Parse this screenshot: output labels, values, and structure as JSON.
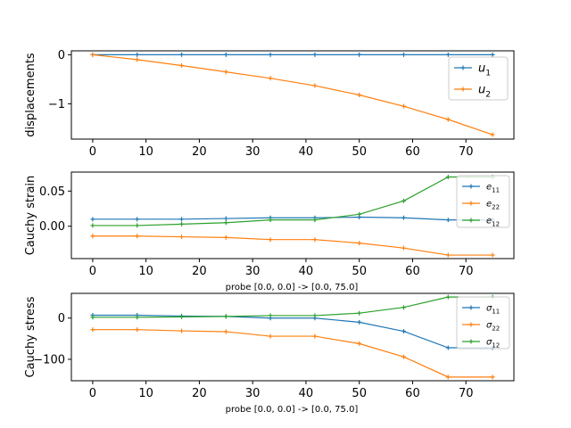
{
  "chart_data": [
    {
      "type": "line",
      "title": "",
      "xlabel": "",
      "ylabel": "displacements",
      "xlim": [
        -4,
        79
      ],
      "ylim": [
        -1.72,
        0.08
      ],
      "xticks": [
        0,
        10,
        20,
        30,
        40,
        50,
        60,
        70
      ],
      "yticks": [
        0,
        -1
      ],
      "ytick_labels": [
        "0",
        "−1"
      ],
      "legend_placement": "upper-right",
      "x": [
        0,
        8.33,
        16.67,
        25,
        33.33,
        41.67,
        50,
        58.33,
        66.67,
        75
      ],
      "series": [
        {
          "name": "u",
          "name_sub": "1",
          "color": "#1f77b4",
          "values": [
            0,
            0,
            0,
            0,
            0,
            0,
            0,
            0,
            0,
            0
          ]
        },
        {
          "name": "u",
          "name_sub": "2",
          "color": "#ff7f0e",
          "values": [
            0,
            -0.1,
            -0.22,
            -0.35,
            -0.48,
            -0.63,
            -0.82,
            -1.05,
            -1.32,
            -1.63
          ]
        }
      ]
    },
    {
      "type": "line",
      "title": "",
      "xlabel": "probe [0.0, 0.0] -> [0.0, 75.0]",
      "ylabel": "Cauchy strain",
      "xlim": [
        -4,
        79
      ],
      "ylim": [
        -0.046,
        0.077
      ],
      "xticks": [
        0,
        10,
        20,
        30,
        40,
        50,
        60,
        70
      ],
      "yticks": [
        0.05,
        0
      ],
      "ytick_labels": [
        "0.05",
        "0.00"
      ],
      "legend_placement": "upper-right",
      "x": [
        0,
        8.33,
        16.67,
        25,
        33.33,
        41.67,
        50,
        58.33,
        66.67,
        75
      ],
      "series": [
        {
          "name": "e",
          "name_sub": "11",
          "color": "#1f77b4",
          "values": [
            0.01,
            0.01,
            0.01,
            0.011,
            0.012,
            0.012,
            0.013,
            0.012,
            0.009,
            0.009
          ]
        },
        {
          "name": "e",
          "name_sub": "22",
          "color": "#ff7f0e",
          "values": [
            -0.014,
            -0.014,
            -0.015,
            -0.016,
            -0.019,
            -0.019,
            -0.024,
            -0.031,
            -0.041,
            -0.041
          ]
        },
        {
          "name": "e",
          "name_sub": "12",
          "color": "#2ca02c",
          "values": [
            0.001,
            0.001,
            0.003,
            0.005,
            0.009,
            0.009,
            0.017,
            0.036,
            0.07,
            0.07
          ]
        }
      ]
    },
    {
      "type": "line",
      "title": "",
      "xlabel": "probe [0.0, 0.0] -> [0.0, 75.0]",
      "ylabel": "Cauchy stress",
      "xlim": [
        -4,
        79
      ],
      "ylim": [
        -152,
        60
      ],
      "xticks": [
        0,
        10,
        20,
        30,
        40,
        50,
        60,
        70
      ],
      "yticks": [
        0,
        -100
      ],
      "ytick_labels": [
        "0",
        "−100"
      ],
      "legend_placement": "upper-right",
      "x": [
        0,
        8.33,
        16.67,
        25,
        33.33,
        41.67,
        50,
        58.33,
        66.67,
        75
      ],
      "series": [
        {
          "name": "σ",
          "name_sub": "11",
          "color": "#1f77b4",
          "values": [
            7,
            7,
            5,
            4,
            0,
            0,
            -10,
            -32,
            -72,
            -72
          ]
        },
        {
          "name": "σ",
          "name_sub": "22",
          "color": "#ff7f0e",
          "values": [
            -28,
            -28,
            -31,
            -33,
            -44,
            -44,
            -62,
            -94,
            -143,
            -143
          ]
        },
        {
          "name": "σ",
          "name_sub": "12",
          "color": "#2ca02c",
          "values": [
            2,
            2,
            3,
            4,
            6,
            6,
            12,
            26,
            51,
            51
          ]
        }
      ]
    }
  ]
}
